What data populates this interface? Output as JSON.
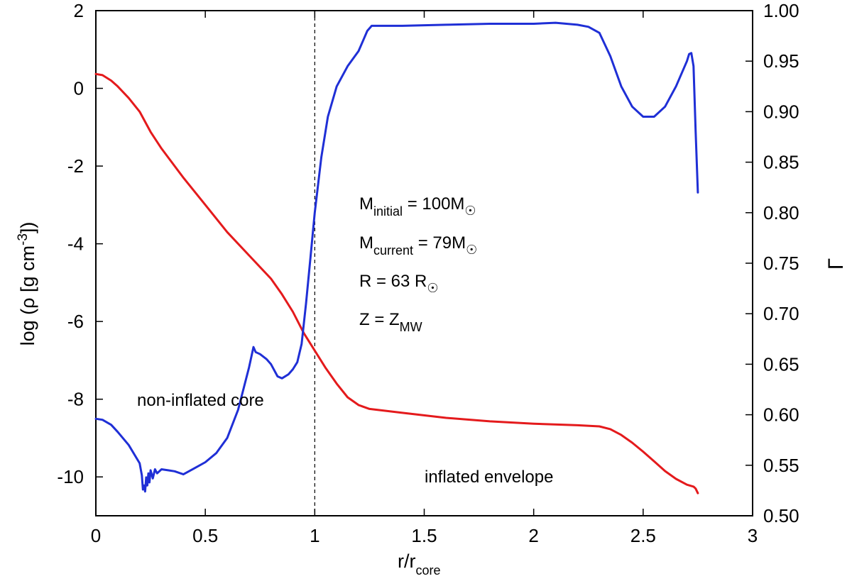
{
  "chart_data": {
    "type": "line",
    "xlabel": {
      "main": "r/r",
      "sub": "core"
    },
    "ylabel_left": {
      "pre": "log  (ρ [g cm",
      "sup": "-3",
      "post": "])"
    },
    "ylabel_right": "Γ",
    "xlim": [
      0,
      3
    ],
    "ylim_left": [
      -11,
      2
    ],
    "ylim_right": [
      0.5,
      1.0
    ],
    "x_ticks": [
      "0",
      "0.5",
      "1",
      "1.5",
      "2",
      "2.5",
      "3"
    ],
    "x_tick_values": [
      0,
      0.5,
      1,
      1.5,
      2,
      2.5,
      3
    ],
    "y_left_ticks": [
      "2",
      "0",
      "-2",
      "-4",
      "-6",
      "-8",
      "-10"
    ],
    "y_left_tick_values": [
      2,
      0,
      -2,
      -4,
      -6,
      -8,
      -10
    ],
    "y_right_ticks": [
      "1.00",
      "0.95",
      "0.90",
      "0.85",
      "0.80",
      "0.75",
      "0.70",
      "0.65",
      "0.60",
      "0.55",
      "0.50"
    ],
    "y_right_tick_values": [
      1.0,
      0.95,
      0.9,
      0.85,
      0.8,
      0.75,
      0.7,
      0.65,
      0.6,
      0.55,
      0.5
    ],
    "vline_x": 1,
    "series": [
      {
        "name": "log rho",
        "axis": "left",
        "color": "#e41a1c",
        "x": [
          0,
          0.03,
          0.07,
          0.1,
          0.15,
          0.2,
          0.25,
          0.3,
          0.4,
          0.5,
          0.6,
          0.7,
          0.8,
          0.85,
          0.9,
          0.95,
          1.0,
          1.05,
          1.1,
          1.15,
          1.2,
          1.25,
          1.4,
          1.6,
          1.8,
          2.0,
          2.2,
          2.3,
          2.35,
          2.4,
          2.45,
          2.5,
          2.55,
          2.6,
          2.65,
          2.7,
          2.73,
          2.74,
          2.75
        ],
        "y": [
          0.37,
          0.34,
          0.2,
          0.05,
          -0.25,
          -0.6,
          -1.12,
          -1.55,
          -2.3,
          -3.0,
          -3.7,
          -4.3,
          -4.9,
          -5.3,
          -5.75,
          -6.3,
          -6.75,
          -7.2,
          -7.6,
          -7.95,
          -8.15,
          -8.25,
          -8.35,
          -8.48,
          -8.57,
          -8.63,
          -8.67,
          -8.7,
          -8.77,
          -8.92,
          -9.12,
          -9.35,
          -9.6,
          -9.85,
          -10.05,
          -10.2,
          -10.25,
          -10.3,
          -10.42
        ]
      },
      {
        "name": "Gamma",
        "axis": "right",
        "color": "#1f2fd6",
        "x": [
          0,
          0.03,
          0.07,
          0.1,
          0.15,
          0.2,
          0.21,
          0.215,
          0.22,
          0.225,
          0.23,
          0.235,
          0.24,
          0.245,
          0.25,
          0.26,
          0.27,
          0.28,
          0.3,
          0.33,
          0.36,
          0.4,
          0.45,
          0.5,
          0.55,
          0.6,
          0.65,
          0.7,
          0.72,
          0.73,
          0.75,
          0.78,
          0.8,
          0.83,
          0.85,
          0.88,
          0.9,
          0.92,
          0.94,
          0.96,
          0.98,
          1.0,
          1.03,
          1.06,
          1.1,
          1.15,
          1.2,
          1.22,
          1.24,
          1.26,
          1.4,
          1.6,
          1.8,
          2.0,
          2.1,
          2.2,
          2.25,
          2.3,
          2.35,
          2.4,
          2.45,
          2.5,
          2.55,
          2.6,
          2.65,
          2.7,
          2.71,
          2.72,
          2.73,
          2.74,
          2.75
        ],
        "y": [
          0.596,
          0.595,
          0.59,
          0.583,
          0.57,
          0.552,
          0.54,
          0.526,
          0.53,
          0.524,
          0.538,
          0.53,
          0.542,
          0.533,
          0.545,
          0.537,
          0.546,
          0.542,
          0.546,
          0.545,
          0.544,
          0.541,
          0.547,
          0.553,
          0.562,
          0.577,
          0.605,
          0.647,
          0.667,
          0.662,
          0.66,
          0.655,
          0.65,
          0.638,
          0.636,
          0.64,
          0.645,
          0.652,
          0.67,
          0.71,
          0.755,
          0.8,
          0.855,
          0.895,
          0.925,
          0.945,
          0.96,
          0.97,
          0.98,
          0.985,
          0.985,
          0.986,
          0.987,
          0.987,
          0.988,
          0.986,
          0.984,
          0.978,
          0.955,
          0.925,
          0.905,
          0.895,
          0.895,
          0.905,
          0.925,
          0.95,
          0.957,
          0.958,
          0.945,
          0.88,
          0.82
        ]
      }
    ],
    "annotations": [
      {
        "id": "m-initial",
        "pre": "M",
        "sub": "initial",
        "post": " = 100M",
        "sym": "☉"
      },
      {
        "id": "m-current",
        "pre": "M",
        "sub": "current",
        "post": " = 79M",
        "sym": "☉"
      },
      {
        "id": "radius",
        "pre": "R = 63 R",
        "sub": "",
        "post": "",
        "sym": "☉"
      },
      {
        "id": "metallicity",
        "pre": "Z = Z",
        "sub": "MW",
        "post": "",
        "sym": ""
      }
    ],
    "region_labels": {
      "core": "non-inflated core",
      "envelope": "inflated envelope"
    }
  }
}
